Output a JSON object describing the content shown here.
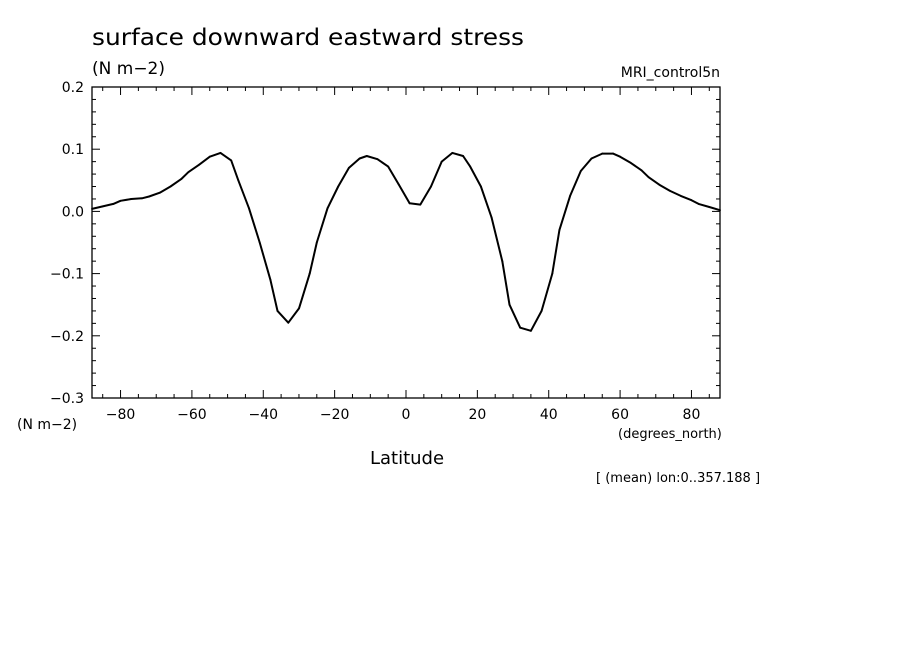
{
  "chart_data": {
    "type": "line",
    "title": "surface downward eastward stress",
    "subtitle": "(N m−2)",
    "run_label": "MRI_control5n",
    "ylabel_units": "(N m−2)",
    "xlabel": "Latitude",
    "xlabel_units": "(degrees_north)",
    "footnote": "[ (mean) lon:0..357.188 ]",
    "xlim": [
      -88,
      88
    ],
    "ylim": [
      -0.3,
      0.2
    ],
    "x_ticks": [
      -80,
      -60,
      -40,
      -20,
      0,
      20,
      40,
      60,
      80
    ],
    "x_tick_labels": [
      "−80",
      "−60",
      "−40",
      "−20",
      "0",
      "20",
      "40",
      "60",
      "80"
    ],
    "y_ticks": [
      0.2,
      0.1,
      0.0,
      -0.1,
      -0.2,
      -0.3
    ],
    "y_tick_labels": [
      "0.2",
      "0.1",
      "0.0",
      "−0.1",
      "−0.2",
      "−0.3"
    ],
    "grid": false,
    "series": [
      {
        "color": "#000000",
        "x": [
          -88,
          -85,
          -82,
          -80,
          -77,
          -74,
          -72,
          -69,
          -66,
          -63,
          -61,
          -58,
          -55,
          -52,
          -49,
          -47,
          -44,
          -41,
          -38,
          -36,
          -33,
          -30,
          -27,
          -25,
          -22,
          -19,
          -16,
          -13,
          -11,
          -8,
          -5,
          -2,
          1,
          4,
          7,
          10,
          13,
          16,
          18,
          21,
          24,
          27,
          29,
          32,
          35,
          38,
          41,
          43,
          46,
          49,
          52,
          55,
          58,
          60,
          63,
          66,
          68,
          71,
          74,
          77,
          80,
          82,
          85,
          88
        ],
        "y": [
          0.004,
          0.008,
          0.012,
          0.017,
          0.02,
          0.021,
          0.024,
          0.03,
          0.04,
          0.052,
          0.063,
          0.075,
          0.088,
          0.094,
          0.082,
          0.05,
          0.005,
          -0.05,
          -0.11,
          -0.16,
          -0.179,
          -0.156,
          -0.1,
          -0.05,
          0.005,
          0.04,
          0.07,
          0.085,
          0.089,
          0.084,
          0.072,
          0.043,
          0.013,
          0.011,
          0.04,
          0.08,
          0.094,
          0.089,
          0.072,
          0.04,
          -0.01,
          -0.08,
          -0.15,
          -0.187,
          -0.192,
          -0.16,
          -0.1,
          -0.03,
          0.025,
          0.065,
          0.085,
          0.093,
          0.093,
          0.088,
          0.078,
          0.066,
          0.055,
          0.043,
          0.033,
          0.025,
          0.018,
          0.012,
          0.007,
          0.002
        ]
      }
    ]
  }
}
